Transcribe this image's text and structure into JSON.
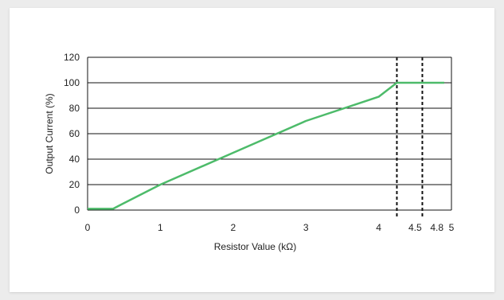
{
  "chart_data": {
    "type": "line",
    "xlabel": "Resistor Value (kΩ)",
    "ylabel": "Output Current (%)",
    "xlim": [
      0,
      5
    ],
    "ylim": [
      0,
      120
    ],
    "x_ticks": [
      0,
      1,
      2,
      3,
      4,
      4.5,
      4.8,
      5
    ],
    "x_tick_labels": [
      "0",
      "1",
      "2",
      "3",
      "4",
      "4.5",
      "4.8",
      "5"
    ],
    "y_ticks": [
      0,
      20,
      40,
      60,
      80,
      100,
      120
    ],
    "y_tick_labels": [
      "0",
      "20",
      "40",
      "60",
      "80",
      "100",
      "120"
    ],
    "grid": "horizontal",
    "series": [
      {
        "color": "#4dbb6a",
        "x": [
          0,
          0.35,
          0.45,
          1.0,
          2.0,
          3.0,
          4.0,
          4.25,
          4.8,
          4.9
        ],
        "y": [
          1,
          1,
          4,
          20,
          45,
          70,
          89,
          100,
          100,
          100
        ]
      }
    ],
    "vertical_markers": [
      {
        "x": 4.25,
        "style": "dashed"
      },
      {
        "x": 4.6,
        "style": "dashed"
      }
    ]
  }
}
